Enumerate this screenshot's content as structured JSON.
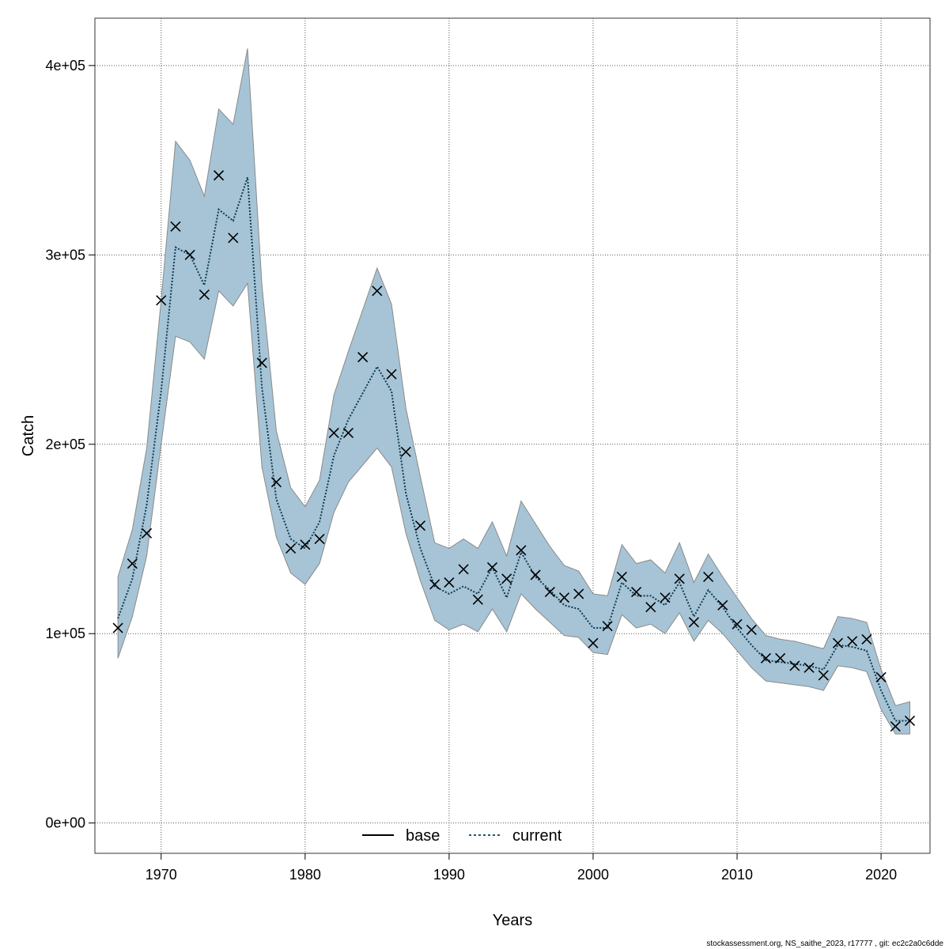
{
  "chart_data": {
    "type": "line",
    "title": "",
    "xlabel": "Years",
    "ylabel": "Catch",
    "xlim": [
      1965.4,
      2023.4
    ],
    "ylim": [
      -16000,
      425000
    ],
    "x_ticks": [
      1970,
      1980,
      1990,
      2000,
      2010,
      2020
    ],
    "x_tick_labels": [
      "1970",
      "1980",
      "1990",
      "2000",
      "2010",
      "2020"
    ],
    "y_ticks": [
      0,
      100000,
      200000,
      300000,
      400000
    ],
    "y_tick_labels": [
      "0e+00",
      "1e+05",
      "2e+05",
      "3e+05",
      "4e+05"
    ],
    "grid": true,
    "legend": {
      "position": "bottom-center",
      "entries": [
        {
          "label": "base",
          "style": "solid",
          "color": "#000000"
        },
        {
          "label": "current",
          "style": "dotted",
          "color": "#1a5a7a"
        }
      ]
    },
    "colors": {
      "band": "#a6c4d6",
      "band_edge": "#8a8a8a",
      "current_line": "#0d3b52",
      "observed_marker": "#000000"
    },
    "years": [
      1967,
      1968,
      1969,
      1970,
      1971,
      1972,
      1973,
      1974,
      1975,
      1976,
      1977,
      1978,
      1979,
      1980,
      1981,
      1982,
      1983,
      1984,
      1985,
      1986,
      1987,
      1988,
      1989,
      1990,
      1991,
      1992,
      1993,
      1994,
      1995,
      1996,
      1997,
      1998,
      1999,
      2000,
      2001,
      2002,
      2003,
      2004,
      2005,
      2006,
      2007,
      2008,
      2009,
      2010,
      2011,
      2012,
      2013,
      2014,
      2015,
      2016,
      2017,
      2018,
      2019,
      2020,
      2021,
      2022
    ],
    "series": [
      {
        "name": "current",
        "kind": "estimate",
        "values": [
          108000,
          129000,
          168000,
          228000,
          304000,
          300000,
          284000,
          324000,
          318000,
          341000,
          230000,
          171000,
          150000,
          145000,
          159000,
          194000,
          213000,
          227000,
          241000,
          228000,
          174000,
          145000,
          125000,
          121000,
          125000,
          121000,
          135000,
          119000,
          143000,
          130000,
          123000,
          115000,
          113000,
          103000,
          103000,
          127000,
          120000,
          120000,
          115000,
          127000,
          109000,
          123000,
          114000,
          103000,
          94000,
          86000,
          85000,
          84000,
          83000,
          81000,
          94000,
          93000,
          91000,
          70000,
          54000,
          54000
        ]
      },
      {
        "name": "upper",
        "kind": "ci_upper",
        "values": [
          130000,
          155000,
          198000,
          276000,
          360000,
          350000,
          331000,
          377000,
          369000,
          409000,
          284000,
          207000,
          177000,
          167000,
          181000,
          226000,
          249000,
          271000,
          293000,
          274000,
          219000,
          183000,
          148000,
          145000,
          150000,
          145000,
          159000,
          141000,
          170000,
          158000,
          146000,
          136000,
          133000,
          121000,
          120000,
          147000,
          137000,
          139000,
          132000,
          148000,
          127000,
          142000,
          130000,
          119000,
          108000,
          99000,
          97000,
          96000,
          94000,
          92000,
          109000,
          108000,
          106000,
          81000,
          62000,
          64000
        ]
      },
      {
        "name": "lower",
        "kind": "ci_lower",
        "values": [
          87000,
          109000,
          141000,
          200000,
          257000,
          254000,
          245000,
          281000,
          273000,
          285000,
          188000,
          151000,
          132000,
          126000,
          137000,
          164000,
          180000,
          189000,
          198000,
          188000,
          153000,
          128000,
          107000,
          102000,
          105000,
          101000,
          113000,
          101000,
          121000,
          113000,
          106000,
          99000,
          98000,
          90000,
          89000,
          110000,
          103000,
          105000,
          100000,
          111000,
          96000,
          107000,
          100000,
          91000,
          82000,
          75000,
          74000,
          73000,
          72000,
          70000,
          83000,
          82000,
          80000,
          60000,
          47000,
          47000
        ]
      },
      {
        "name": "observed",
        "kind": "observed",
        "values": [
          103000,
          137000,
          153000,
          276000,
          315000,
          300000,
          279000,
          342000,
          309000,
          null,
          243000,
          180000,
          145000,
          147000,
          150000,
          206000,
          206000,
          246000,
          281000,
          237000,
          196000,
          157000,
          126000,
          127000,
          134000,
          118000,
          135000,
          129000,
          144000,
          131000,
          122000,
          119000,
          121000,
          95000,
          104000,
          130000,
          122000,
          114000,
          119000,
          129000,
          106000,
          130000,
          115000,
          105000,
          102000,
          87000,
          87000,
          83000,
          82000,
          78000,
          95000,
          96000,
          97000,
          77000,
          51000,
          54000
        ]
      }
    ]
  },
  "footer": "stockassessment.org, NS_saithe_2023, r17777 , git: ec2c2a0c6dde"
}
